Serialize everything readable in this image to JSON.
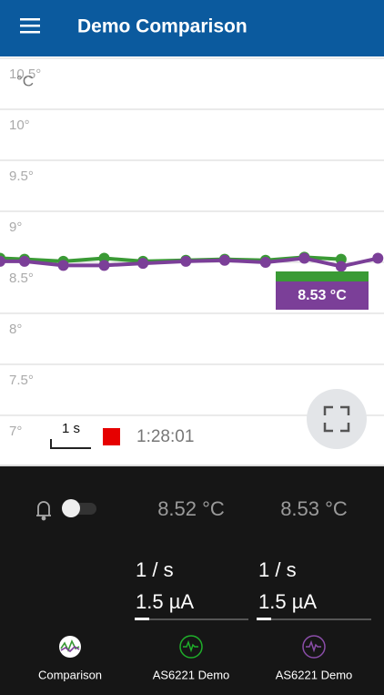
{
  "header": {
    "title": "Demo Comparison"
  },
  "chart_data": {
    "type": "line",
    "y_unit": "°C",
    "x": [
      0,
      0.6,
      1.55,
      2.55,
      3.5,
      4.55,
      5.5,
      6.5,
      7.45,
      8.35,
      9.25
    ],
    "xlim": [
      0,
      9.4
    ],
    "series": [
      {
        "name": "AS6221 Demo",
        "color": "#7b3f98",
        "values": [
          8.51,
          8.51,
          8.47,
          8.47,
          8.49,
          8.51,
          8.52,
          8.5,
          8.54,
          8.46,
          8.54
        ]
      },
      {
        "name": "AS6221 Demo",
        "color": "#3a9a35",
        "values": [
          8.54,
          8.53,
          8.51,
          8.54,
          8.51,
          8.52,
          8.53,
          8.52,
          8.55,
          8.53,
          null
        ]
      }
    ],
    "ylim": [
      6.5,
      10.5
    ],
    "yticks": [
      {
        "value": 10.5,
        "label": "10.5°"
      },
      {
        "value": 10,
        "label": "10°"
      },
      {
        "value": 9.5,
        "label": "9.5°"
      },
      {
        "value": 9,
        "label": "9°"
      },
      {
        "value": 8.5,
        "label": "8.5°"
      },
      {
        "value": 8,
        "label": "8°"
      },
      {
        "value": 7.5,
        "label": "7.5°"
      },
      {
        "value": 7,
        "label": "7°"
      }
    ],
    "grid": true,
    "readout": "8.53 °C",
    "time_scale": "1 s",
    "elapsed": "1:28:01"
  },
  "panel": {
    "readings": [
      "8.52 °C",
      "8.53 °C"
    ],
    "rates": [
      "1 / s",
      "1 / s"
    ],
    "currents": [
      "1.5 µA",
      "1.5 µA"
    ]
  },
  "nav": [
    "Comparison",
    "AS6221 Demo",
    "AS6221 Demo"
  ]
}
